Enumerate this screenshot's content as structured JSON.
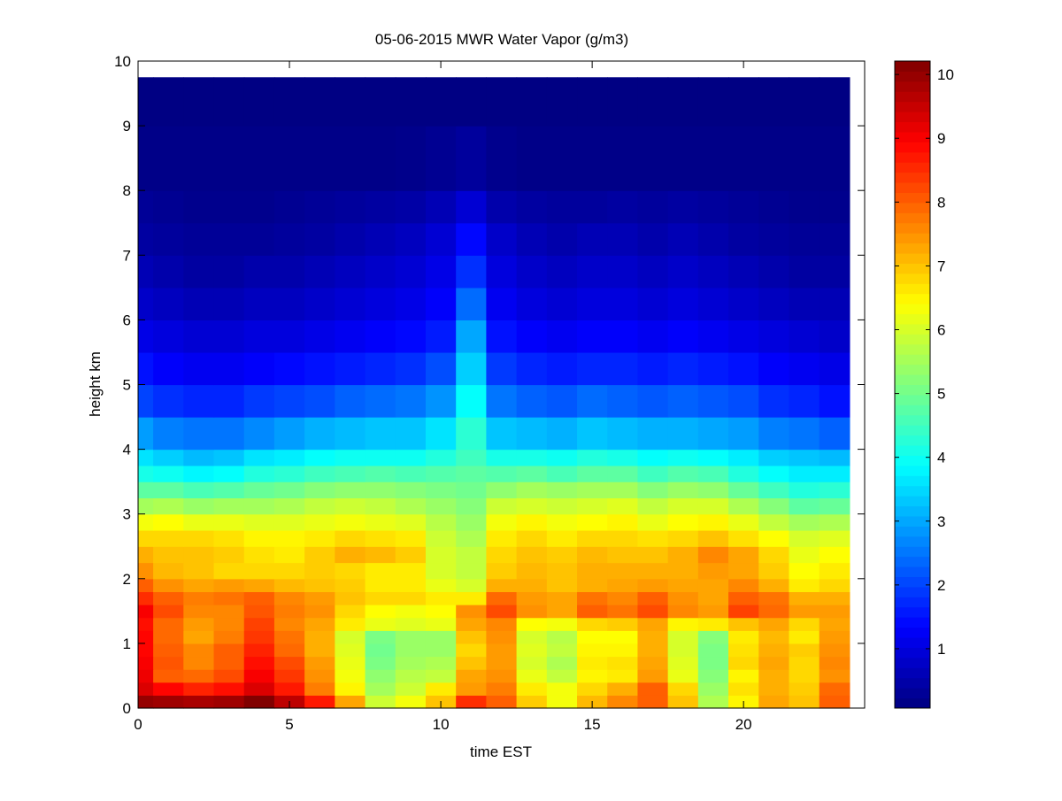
{
  "chart_data": {
    "type": "heatmap",
    "title": "05-06-2015 MWR Water Vapor (g/m3)",
    "xlabel": "time EST",
    "ylabel": "height km",
    "xlim": [
      0,
      24
    ],
    "ylim": [
      0,
      10
    ],
    "xticks": [
      0,
      5,
      10,
      15,
      20
    ],
    "yticks": [
      0,
      1,
      2,
      3,
      4,
      5,
      6,
      7,
      8,
      9,
      10
    ],
    "colorbar": {
      "clim": [
        0.07,
        10.21
      ],
      "ticks": [
        1,
        2,
        3,
        4,
        5,
        6,
        7,
        8,
        9,
        10
      ],
      "colormap": "jet"
    },
    "x_centers": [
      0,
      1,
      2,
      3,
      4,
      5,
      6,
      7,
      8,
      9,
      10,
      11,
      12,
      13,
      14,
      15,
      16,
      17,
      18,
      19,
      20,
      21,
      22,
      23
    ],
    "x_edges_extent": [
      0,
      23.5
    ],
    "height_edges": [
      0,
      0.2,
      0.4,
      0.6,
      0.8,
      1.0,
      1.2,
      1.4,
      1.6,
      1.8,
      2.0,
      2.25,
      2.5,
      2.75,
      3.0,
      3.25,
      3.5,
      3.75,
      4.0,
      4.5,
      5.0,
      5.5,
      6.0,
      6.5,
      7.0,
      7.5,
      8.0,
      9.0,
      9.75
    ],
    "values": [
      [
        10.0,
        9.9,
        9.8,
        9.9,
        10.2,
        9.6,
        8.7,
        7.3,
        5.9,
        6.3,
        7.0,
        8.5,
        8.0,
        6.9,
        6.3,
        7.1,
        7.6,
        8.0,
        7.0,
        5.6,
        6.5,
        7.3,
        7.0,
        8.0
      ],
      [
        9.3,
        8.9,
        8.6,
        8.8,
        9.3,
        8.7,
        7.7,
        6.5,
        5.5,
        5.9,
        6.6,
        7.4,
        7.7,
        6.6,
        6.3,
        6.8,
        7.2,
        8.0,
        6.8,
        5.4,
        6.7,
        7.2,
        6.9,
        7.9
      ],
      [
        9.1,
        8.0,
        7.9,
        8.2,
        9.0,
        8.4,
        7.5,
        6.3,
        5.3,
        5.7,
        5.8,
        7.3,
        7.5,
        6.2,
        5.8,
        6.5,
        6.6,
        7.4,
        6.2,
        5.2,
        6.5,
        7.2,
        6.8,
        7.5
      ],
      [
        9.0,
        8.1,
        7.6,
        8.0,
        8.8,
        8.2,
        7.4,
        6.2,
        5.1,
        5.5,
        5.6,
        7.0,
        7.4,
        6.0,
        5.6,
        6.6,
        6.7,
        7.3,
        6.1,
        5.1,
        6.8,
        7.3,
        6.8,
        7.6
      ],
      [
        8.9,
        8.0,
        7.6,
        8.0,
        8.6,
        7.9,
        7.2,
        6.1,
        5.0,
        5.4,
        5.4,
        6.8,
        7.4,
        6.1,
        5.8,
        6.5,
        6.5,
        7.2,
        6.0,
        5.1,
        6.7,
        7.2,
        6.9,
        7.5
      ],
      [
        8.9,
        7.9,
        7.3,
        7.7,
        8.4,
        7.8,
        7.2,
        6.0,
        5.1,
        5.4,
        5.4,
        7.0,
        7.5,
        6.0,
        5.7,
        6.4,
        6.4,
        7.2,
        6.0,
        5.2,
        6.6,
        7.1,
        6.6,
        7.4
      ],
      [
        8.8,
        7.9,
        7.4,
        7.6,
        8.3,
        7.6,
        7.3,
        6.6,
        6.2,
        6.1,
        6.2,
        7.3,
        7.6,
        6.4,
        6.3,
        6.8,
        6.9,
        7.3,
        6.5,
        6.6,
        7.0,
        7.3,
        6.8,
        7.3
      ],
      [
        9.0,
        8.2,
        7.6,
        7.6,
        8.1,
        7.7,
        7.5,
        6.8,
        6.4,
        6.3,
        6.4,
        7.5,
        8.2,
        7.5,
        7.3,
        8.0,
        7.8,
        8.2,
        7.6,
        7.4,
        8.3,
        7.9,
        7.4,
        7.4
      ],
      [
        8.5,
        8.0,
        7.7,
        7.8,
        8.0,
        7.6,
        7.4,
        7.0,
        6.8,
        6.8,
        6.6,
        6.6,
        7.9,
        7.4,
        7.3,
        7.8,
        7.6,
        8.0,
        7.5,
        7.3,
        8.0,
        7.8,
        7.2,
        7.2
      ],
      [
        8.0,
        7.5,
        7.3,
        7.4,
        7.3,
        7.1,
        7.0,
        6.9,
        6.6,
        6.6,
        6.2,
        6.0,
        7.2,
        7.2,
        7.0,
        7.2,
        7.3,
        7.4,
        7.3,
        7.3,
        7.6,
        7.2,
        6.6,
        6.8
      ],
      [
        7.5,
        7.1,
        7.0,
        6.8,
        6.8,
        6.8,
        6.9,
        6.8,
        6.6,
        6.6,
        6.0,
        5.8,
        6.9,
        7.1,
        7.0,
        7.2,
        7.2,
        7.2,
        7.2,
        7.4,
        7.3,
        6.9,
        6.4,
        6.6
      ],
      [
        7.2,
        7.0,
        7.0,
        6.9,
        6.7,
        6.6,
        6.9,
        7.2,
        7.1,
        6.9,
        6.0,
        5.8,
        6.8,
        7.0,
        6.9,
        7.1,
        7.0,
        7.0,
        7.2,
        7.6,
        7.3,
        6.8,
        6.2,
        6.4
      ],
      [
        6.8,
        6.8,
        6.8,
        6.7,
        6.5,
        6.5,
        6.6,
        6.8,
        6.7,
        6.6,
        5.9,
        5.6,
        6.6,
        6.8,
        6.6,
        6.8,
        6.8,
        6.7,
        6.8,
        7.0,
        6.7,
        6.4,
        6.0,
        6.1
      ],
      [
        6.3,
        6.4,
        6.2,
        6.2,
        6.1,
        6.1,
        6.2,
        6.3,
        6.2,
        6.1,
        5.7,
        5.4,
        6.3,
        6.5,
        6.3,
        6.4,
        6.5,
        6.2,
        6.4,
        6.5,
        6.2,
        5.8,
        5.5,
        5.6
      ],
      [
        5.5,
        5.6,
        5.4,
        5.5,
        5.5,
        5.6,
        5.8,
        5.9,
        5.8,
        5.6,
        5.4,
        5.2,
        5.9,
        6.0,
        5.9,
        6.0,
        6.1,
        5.8,
        6.0,
        6.0,
        5.6,
        5.2,
        4.8,
        4.9
      ],
      [
        4.8,
        4.8,
        4.6,
        4.7,
        4.9,
        5.0,
        5.2,
        5.3,
        5.3,
        5.2,
        5.1,
        5.0,
        5.3,
        5.5,
        5.4,
        5.5,
        5.5,
        5.2,
        5.4,
        5.3,
        4.9,
        4.5,
        4.2,
        4.3
      ],
      [
        4.1,
        4.0,
        3.8,
        3.9,
        4.2,
        4.3,
        4.5,
        4.6,
        4.7,
        4.6,
        4.7,
        4.8,
        4.7,
        4.8,
        4.6,
        4.8,
        4.8,
        4.5,
        4.7,
        4.6,
        4.2,
        3.9,
        3.7,
        3.7
      ],
      [
        3.6,
        3.4,
        3.2,
        3.3,
        3.6,
        3.7,
        3.9,
        4.0,
        4.0,
        4.0,
        4.2,
        4.5,
        4.1,
        4.1,
        4.0,
        4.2,
        4.1,
        3.9,
        4.0,
        3.9,
        3.7,
        3.4,
        3.3,
        3.2
      ],
      [
        2.9,
        2.6,
        2.5,
        2.5,
        2.7,
        2.9,
        3.1,
        3.2,
        3.3,
        3.3,
        3.6,
        4.3,
        3.3,
        3.2,
        3.1,
        3.3,
        3.2,
        3.1,
        3.1,
        3.0,
        2.9,
        2.6,
        2.5,
        2.3
      ],
      [
        2.0,
        1.8,
        1.7,
        1.7,
        1.9,
        2.0,
        2.1,
        2.3,
        2.4,
        2.5,
        2.8,
        3.9,
        2.5,
        2.3,
        2.2,
        2.4,
        2.3,
        2.2,
        2.3,
        2.2,
        2.1,
        1.8,
        1.7,
        1.5
      ],
      [
        1.5,
        1.3,
        1.2,
        1.2,
        1.3,
        1.4,
        1.5,
        1.6,
        1.7,
        1.8,
        2.1,
        3.4,
        1.9,
        1.7,
        1.6,
        1.7,
        1.7,
        1.6,
        1.7,
        1.6,
        1.5,
        1.3,
        1.2,
        1.1
      ],
      [
        1.1,
        1.0,
        0.9,
        0.9,
        1.0,
        1.0,
        1.1,
        1.2,
        1.3,
        1.4,
        1.6,
        3.0,
        1.5,
        1.3,
        1.2,
        1.3,
        1.3,
        1.2,
        1.3,
        1.2,
        1.1,
        1.0,
        0.9,
        0.8
      ],
      [
        0.8,
        0.7,
        0.6,
        0.6,
        0.7,
        0.7,
        0.8,
        0.9,
        1.0,
        1.1,
        1.3,
        2.4,
        1.2,
        1.0,
        0.9,
        1.0,
        1.0,
        0.9,
        1.0,
        0.9,
        0.8,
        0.7,
        0.6,
        0.6
      ],
      [
        0.6,
        0.5,
        0.4,
        0.4,
        0.5,
        0.5,
        0.6,
        0.7,
        0.8,
        0.9,
        1.1,
        1.8,
        1.0,
        0.8,
        0.7,
        0.8,
        0.8,
        0.7,
        0.8,
        0.7,
        0.6,
        0.5,
        0.4,
        0.4
      ],
      [
        0.4,
        0.35,
        0.3,
        0.3,
        0.3,
        0.35,
        0.4,
        0.5,
        0.6,
        0.7,
        0.9,
        1.4,
        0.8,
        0.6,
        0.5,
        0.6,
        0.6,
        0.5,
        0.6,
        0.5,
        0.4,
        0.35,
        0.3,
        0.3
      ],
      [
        0.3,
        0.25,
        0.2,
        0.2,
        0.2,
        0.25,
        0.3,
        0.35,
        0.4,
        0.45,
        0.6,
        0.9,
        0.5,
        0.4,
        0.35,
        0.35,
        0.4,
        0.35,
        0.4,
        0.35,
        0.3,
        0.25,
        0.2,
        0.2
      ],
      [
        0.15,
        0.15,
        0.15,
        0.15,
        0.15,
        0.15,
        0.15,
        0.15,
        0.15,
        0.18,
        0.25,
        0.35,
        0.2,
        0.15,
        0.15,
        0.15,
        0.15,
        0.15,
        0.15,
        0.15,
        0.15,
        0.15,
        0.15,
        0.15
      ],
      [
        0.1,
        0.1,
        0.1,
        0.1,
        0.1,
        0.1,
        0.1,
        0.1,
        0.1,
        0.1,
        0.1,
        0.1,
        0.1,
        0.1,
        0.1,
        0.1,
        0.1,
        0.1,
        0.1,
        0.1,
        0.1,
        0.1,
        0.1,
        0.1
      ]
    ]
  }
}
